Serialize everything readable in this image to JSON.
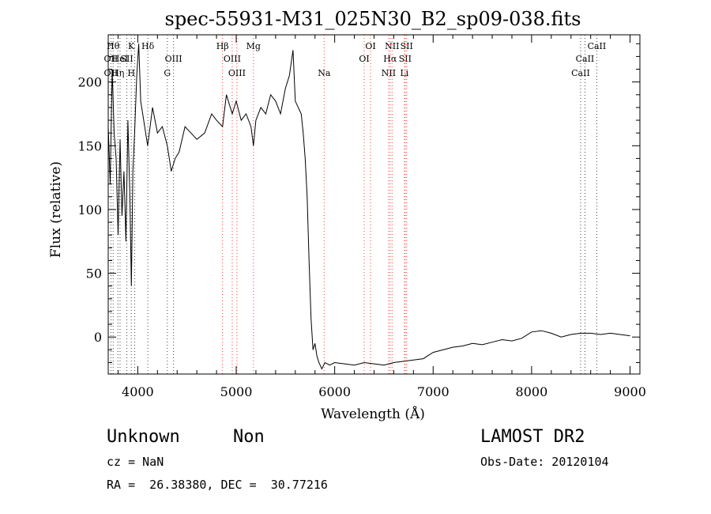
{
  "chart_data": {
    "type": "line",
    "title": "spec-55931-M31_025N30_B2_sp09-038.fits",
    "xlabel": "Wavelength (Å)",
    "ylabel": "Flux (relative)",
    "xlim": [
      3700,
      9100
    ],
    "ylim": [
      -29,
      237
    ],
    "xticks": [
      4000,
      5000,
      6000,
      7000,
      8000,
      9000
    ],
    "yticks": [
      0,
      50,
      100,
      150,
      200
    ],
    "grid": false,
    "series": [
      {
        "x": [
          3700,
          3720,
          3740,
          3760,
          3780,
          3800,
          3820,
          3840,
          3860,
          3880,
          3900,
          3920,
          3935,
          3950,
          3968,
          3990,
          4010,
          4030,
          4060,
          4100,
          4150,
          4200,
          4250,
          4300,
          4340,
          4380,
          4420,
          4480,
          4540,
          4600,
          4680,
          4750,
          4800,
          4861,
          4900,
          4960,
          5000,
          5050,
          5100,
          5150,
          5175,
          5200,
          5250,
          5300,
          5350,
          5400,
          5450,
          5500,
          5540,
          5577,
          5600,
          5630,
          5660,
          5680,
          5700,
          5720,
          5740,
          5760,
          5780,
          5800,
          5820,
          5840,
          5870,
          5900,
          5950,
          6000,
          6100,
          6200,
          6300,
          6400,
          6500,
          6600,
          6700,
          6800,
          6900,
          7000,
          7100,
          7200,
          7300,
          7400,
          7500,
          7600,
          7700,
          7800,
          7900,
          8000,
          8100,
          8200,
          8300,
          8400,
          8500,
          8600,
          8700,
          8800,
          8900,
          9000
        ],
        "y": [
          165,
          120,
          210,
          160,
          140,
          80,
          155,
          95,
          130,
          75,
          170,
          110,
          40,
          130,
          160,
          205,
          230,
          185,
          170,
          150,
          180,
          160,
          165,
          150,
          130,
          140,
          145,
          165,
          160,
          155,
          160,
          175,
          170,
          165,
          190,
          175,
          185,
          170,
          175,
          165,
          150,
          170,
          180,
          175,
          190,
          185,
          175,
          195,
          205,
          225,
          185,
          180,
          175,
          160,
          140,
          110,
          60,
          15,
          -10,
          -5,
          -15,
          -20,
          -25,
          -20,
          -22,
          -20,
          -21,
          -22,
          -20,
          -21,
          -22,
          -20,
          -19,
          -18,
          -17,
          -12,
          -10,
          -8,
          -7,
          -5,
          -6,
          -4,
          -2,
          -3,
          -1,
          4,
          5,
          3,
          0,
          2,
          3,
          3,
          2,
          3,
          2,
          1
        ]
      }
    ],
    "lines": {
      "emission": [
        {
          "w": 4861,
          "top": "Hβ",
          "mid": "",
          "bot": ""
        },
        {
          "w": 4959,
          "top": "",
          "mid": "OIII",
          "bot": ""
        },
        {
          "w": 5007,
          "top": "",
          "mid": "",
          "bot": "OIII"
        },
        {
          "w": 5175,
          "top": "Mg",
          "mid": "",
          "bot": ""
        },
        {
          "w": 5893,
          "top": "",
          "mid": "",
          "bot": "Na"
        },
        {
          "w": 6300,
          "top": "",
          "mid": "OI",
          "bot": ""
        },
        {
          "w": 6364,
          "top": "OI",
          "mid": "",
          "bot": ""
        },
        {
          "w": 6548,
          "top": "",
          "mid": "",
          "bot": "NII"
        },
        {
          "w": 6563,
          "top": "",
          "mid": "Hα",
          "bot": ""
        },
        {
          "w": 6583,
          "top": "NII",
          "mid": "",
          "bot": ""
        },
        {
          "w": 6708,
          "top": "",
          "mid": "",
          "bot": "Li"
        },
        {
          "w": 6716,
          "top": "",
          "mid": "SII",
          "bot": ""
        },
        {
          "w": 6731,
          "top": "SII",
          "mid": "",
          "bot": ""
        }
      ],
      "absorption": [
        {
          "w": 3727,
          "top": "",
          "mid": "OII",
          "bot": "OII"
        },
        {
          "w": 3750,
          "top": "Hθ",
          "mid": "",
          "bot": ""
        },
        {
          "w": 3798,
          "top": "",
          "mid": "",
          "bot": "Hη"
        },
        {
          "w": 3820,
          "top": "",
          "mid": "HeI",
          "bot": ""
        },
        {
          "w": 3889,
          "top": "",
          "mid": "SII",
          "bot": ""
        },
        {
          "w": 3934,
          "top": "K",
          "mid": "",
          "bot": "H"
        },
        {
          "w": 3969,
          "top": "",
          "mid": "",
          "bot": ""
        },
        {
          "w": 4102,
          "top": "Hδ",
          "mid": "",
          "bot": ""
        },
        {
          "w": 4300,
          "top": "",
          "mid": "",
          "bot": "G"
        },
        {
          "w": 4363,
          "top": "",
          "mid": "OIII",
          "bot": ""
        },
        {
          "w": 8498,
          "top": "",
          "mid": "",
          "bot": "CaII"
        },
        {
          "w": 8542,
          "top": "",
          "mid": "CaII",
          "bot": ""
        },
        {
          "w": 8662,
          "top": "CaII",
          "mid": "",
          "bot": ""
        }
      ]
    },
    "colors": {
      "emission": "#ff3b30",
      "absorption": "#444444",
      "spectrum": "#000000"
    }
  },
  "info": {
    "class": "Unknown",
    "subclass": "Non",
    "survey": "LAMOST DR2",
    "cz": "cz = NaN",
    "obs_date": "Obs-Date: 20120104",
    "coords": "RA =  26.38380, DEC =  30.77216"
  }
}
